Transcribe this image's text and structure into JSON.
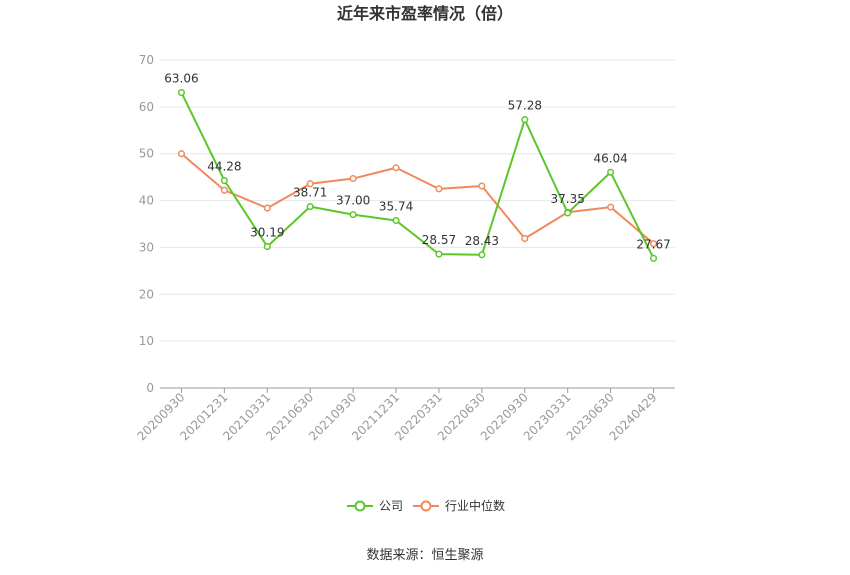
{
  "chart_data": {
    "type": "line",
    "title": "近年来市盈率情况（倍）",
    "x": [
      "20200930",
      "20201231",
      "20210331",
      "20210630",
      "20210930",
      "20211231",
      "20220331",
      "20220630",
      "20220930",
      "20230331",
      "20230630",
      "20240429"
    ],
    "ylim": [
      0,
      70
    ],
    "yticks": [
      0,
      10,
      20,
      30,
      40,
      50,
      60,
      70
    ],
    "grid": true,
    "legend_position": "bottom",
    "series": [
      {
        "name": "公司",
        "color": "#5cc62b",
        "values": [
          63.06,
          44.28,
          30.19,
          38.71,
          37.0,
          35.74,
          28.57,
          28.43,
          57.28,
          37.35,
          46.04,
          27.67
        ],
        "labels": [
          "63.06",
          "44.28",
          "30.19",
          "38.71",
          "37.00",
          "35.74",
          "28.57",
          "28.43",
          "57.28",
          "37.35",
          "46.04",
          "27.67"
        ]
      },
      {
        "name": "行业中位数",
        "color": "#f08a5d",
        "values": [
          50.0,
          42.2,
          38.4,
          43.6,
          44.7,
          47.0,
          42.5,
          43.1,
          31.9,
          37.5,
          38.6,
          30.8
        ]
      }
    ]
  },
  "source": "数据来源：恒生聚源"
}
